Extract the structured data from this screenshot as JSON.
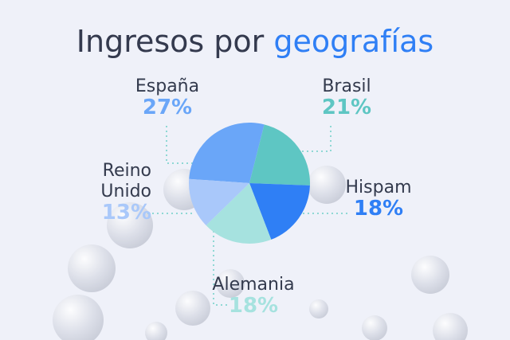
{
  "chart_data": {
    "type": "pie",
    "title": "Ingresos por",
    "title_highlight": "geografías",
    "categories": [
      "España",
      "Brasil",
      "Hispam",
      "Alemania",
      "Reino Unido"
    ],
    "values": [
      27,
      21,
      18,
      18,
      13
    ],
    "value_labels": [
      "27%",
      "21%",
      "18%",
      "18%",
      "13%"
    ],
    "colors": [
      "#6aa6f8",
      "#5ec6c3",
      "#2f7ff5",
      "#a6e2df",
      "#a9c8fa"
    ]
  }
}
